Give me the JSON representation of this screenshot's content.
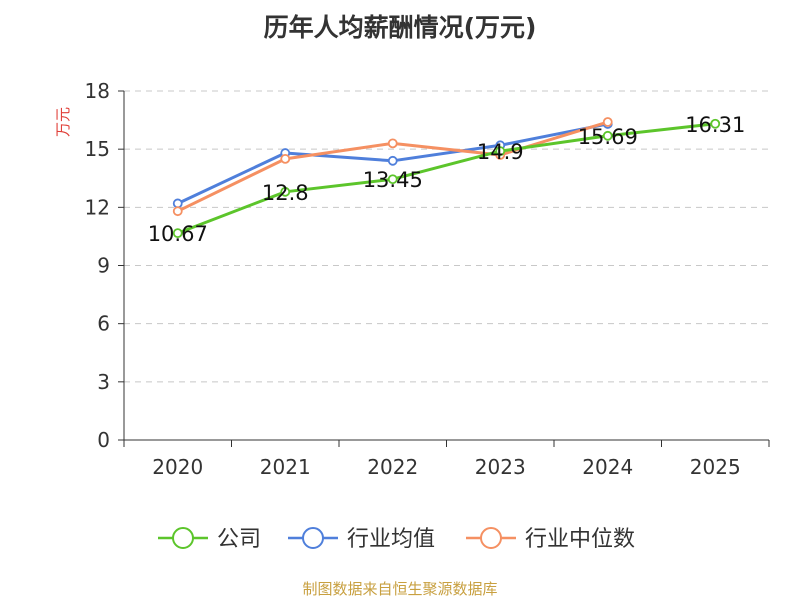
{
  "title": "历年人均薪酬情况(万元)",
  "source": "制图数据来自恒生聚源数据库",
  "chart_data": {
    "type": "line",
    "title": "历年人均薪酬情况(万元)",
    "ylabel": "万元",
    "xlabel": "",
    "categories": [
      "2020",
      "2021",
      "2022",
      "2023",
      "2024",
      "2025"
    ],
    "ylim": [
      0,
      18
    ],
    "yticks": [
      0,
      3,
      6,
      9,
      12,
      15,
      18
    ],
    "grid": true,
    "legend_position": "bottom",
    "series": [
      {
        "name": "公司",
        "color": "#5cc52b",
        "values": [
          10.67,
          12.8,
          13.45,
          14.9,
          15.69,
          16.31
        ],
        "labels": [
          "10.67",
          "12.8",
          "13.45",
          "14.9",
          "15.69",
          "16.31"
        ]
      },
      {
        "name": "行业均值",
        "color": "#4f7fdb",
        "values": [
          12.2,
          14.8,
          14.4,
          15.2,
          16.3,
          null
        ]
      },
      {
        "name": "行业中位数",
        "color": "#f59062",
        "values": [
          11.8,
          14.5,
          15.3,
          14.7,
          16.4,
          null
        ]
      }
    ]
  }
}
